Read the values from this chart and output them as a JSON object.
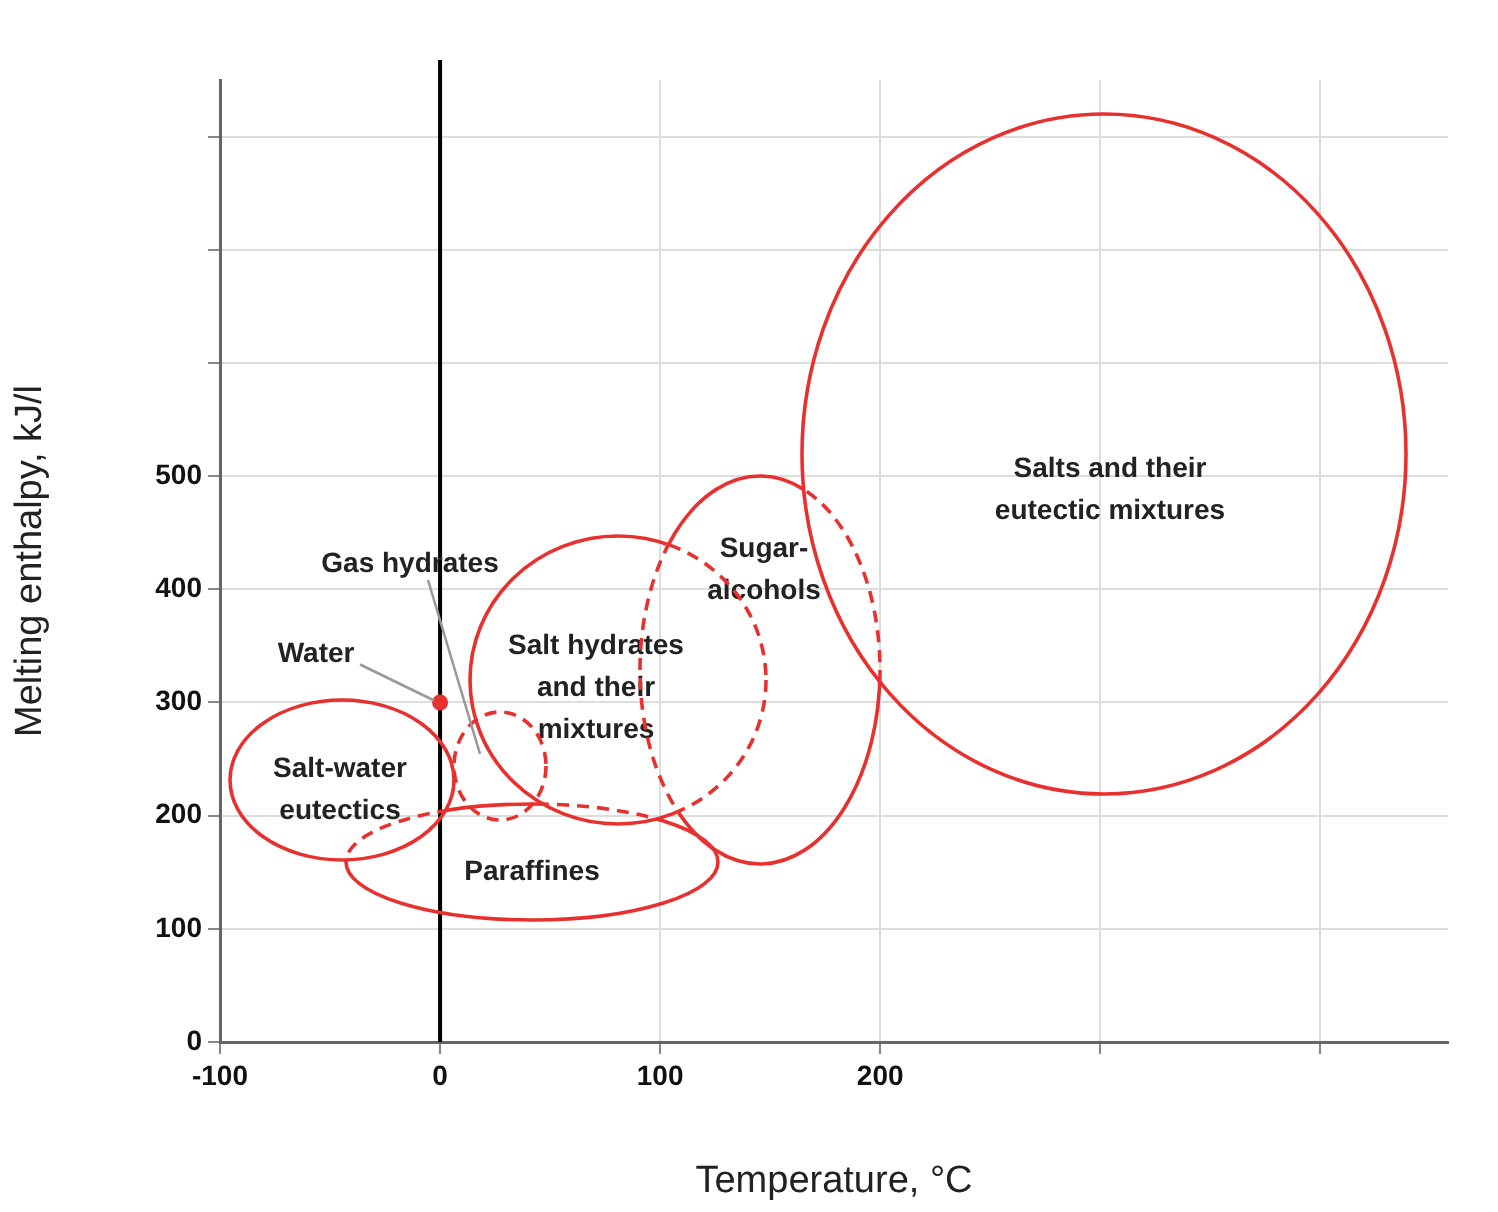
{
  "chart_data": {
    "type": "scatter",
    "xlabel": "Temperature, °C",
    "ylabel": "Melting enthalpy, kJ/l",
    "xlim": [
      -100,
      458
    ],
    "xticks": [
      -100,
      0,
      100,
      200,
      {
        "value": 300,
        "label": null
      },
      {
        "value": 400,
        "label": null
      }
    ],
    "ylim": [
      0,
      850
    ],
    "yticks": [
      0,
      100,
      200,
      300,
      400,
      500,
      {
        "value": 600,
        "label": null
      },
      {
        "value": 700,
        "label": null
      },
      {
        "value": 800,
        "label": null
      }
    ],
    "grid": true,
    "legend": false,
    "marker": "circle",
    "ref_lines": [
      {
        "axis": "x",
        "value": 0,
        "color": "#000000"
      }
    ],
    "annotations": [
      "Salts and their eutectic mixtures",
      "Salt hydrates and their mixtures",
      "Sugar-alcohols",
      "Gas hydrates",
      "Salt-water eutectics",
      "Paraffines"
    ],
    "series": [
      {
        "name": "Water",
        "color": "#e8312f",
        "x": [
          0
        ],
        "values": [
          300
        ]
      }
    ]
  }
}
